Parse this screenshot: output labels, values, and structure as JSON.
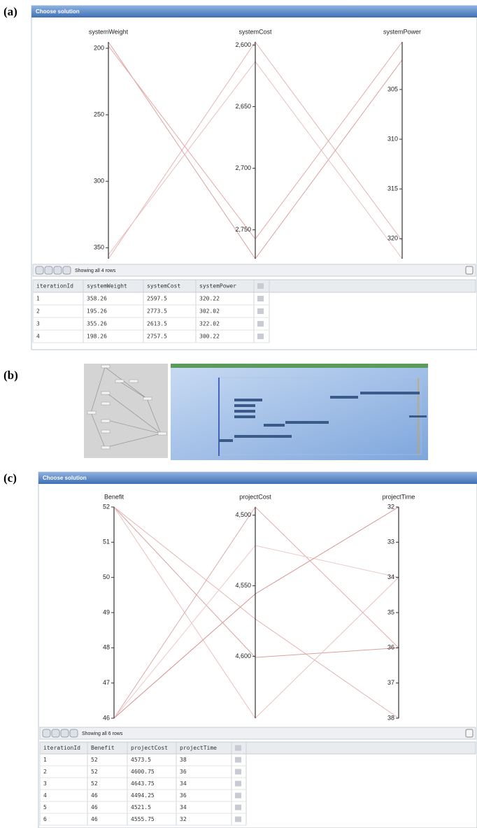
{
  "panels": [
    {
      "label": "(a)",
      "title": "Choose solution",
      "axes": [
        {
          "name": "systemWeight",
          "lim": [
            195.26,
            358.26
          ],
          "ticks": [
            200,
            250,
            300,
            350
          ]
        },
        {
          "name": "systemCost",
          "lim": [
            2597.5,
            2773.5
          ],
          "ticks": [
            {
              "value": 2600,
              "label": "2,600"
            },
            {
              "value": 2650,
              "label": "2,650"
            },
            {
              "value": 2700,
              "label": "2,700"
            },
            {
              "value": 2750,
              "label": "2,750"
            }
          ]
        },
        {
          "name": "systemPower",
          "lim": [
            300.22,
            322.02
          ],
          "ticks": [
            305,
            310,
            315,
            320
          ]
        }
      ],
      "status": "Showing all 4 rows",
      "table": {
        "columns": [
          "iterationId",
          "systemWeight",
          "systemCost",
          "systemPower"
        ],
        "rows": [
          [
            1,
            358.26,
            2597.5,
            320.22
          ],
          [
            2,
            195.26,
            2773.5,
            302.02
          ],
          [
            3,
            355.26,
            2613.5,
            322.02
          ],
          [
            4,
            198.26,
            2757.5,
            300.22
          ]
        ]
      }
    },
    {
      "label": "(b)"
    },
    {
      "label": "(c)",
      "title": "Choose solution",
      "axes": [
        {
          "name": "Benefit",
          "lim": [
            52,
            46
          ],
          "ticks": [
            52,
            51,
            50,
            49,
            48,
            47,
            46
          ]
        },
        {
          "name": "projectCost",
          "lim": [
            4494.25,
            4643.75
          ],
          "ticks": [
            {
              "value": 4500,
              "label": "4,500"
            },
            {
              "value": 4550,
              "label": "4,550"
            },
            {
              "value": 4600,
              "label": "4,600"
            }
          ]
        },
        {
          "name": "projectTime",
          "lim": [
            32,
            38
          ],
          "ticks": [
            32,
            33,
            34,
            35,
            36,
            37,
            38
          ]
        }
      ],
      "status": "Showing all 6 rows",
      "table": {
        "columns": [
          "iterationId",
          "Benefit",
          "projectCost",
          "projectTime"
        ],
        "rows": [
          [
            1,
            52,
            4573.5,
            38
          ],
          [
            2,
            52,
            4600.75,
            36
          ],
          [
            3,
            52,
            4643.75,
            34
          ],
          [
            4,
            46,
            4494.25,
            36
          ],
          [
            5,
            46,
            4521.5,
            34
          ],
          [
            6,
            46,
            4555.75,
            32
          ]
        ]
      }
    }
  ]
}
